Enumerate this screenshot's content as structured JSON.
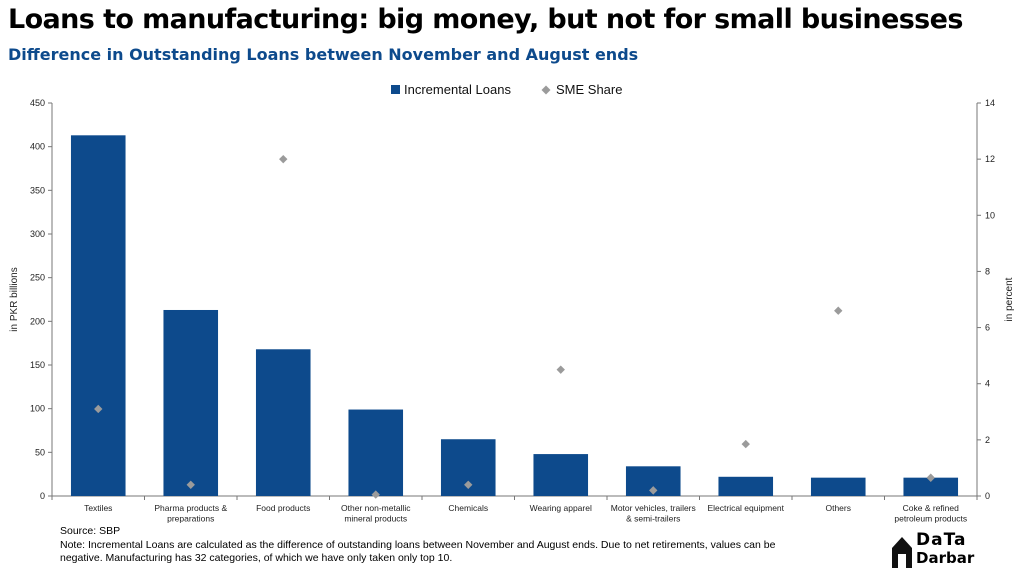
{
  "title": "Loans to manufacturing: big money, but not for small businesses",
  "subtitle": "Difference in Outstanding Loans between November and August ends",
  "source": "Source: SBP",
  "note": "Note: Incremental Loans are calculated as the difference of outstanding loans between November and August ends. Due to net retirements, values can be negative. Manufacturing has 32 categories, of which we have only taken only top 10.",
  "logo": {
    "top": "DaTa",
    "bottom": "Darbar"
  },
  "colors": {
    "bar": "#0d4a8c",
    "marker": "#9b9b9b",
    "title": "#000000",
    "subtitle": "#0d4a8c"
  },
  "chart_data": {
    "type": "bar",
    "categories": [
      [
        "Textiles"
      ],
      [
        "Pharma products &",
        "preparations"
      ],
      [
        "Food products"
      ],
      [
        "Other non-metallic",
        "mineral products"
      ],
      [
        "Chemicals"
      ],
      [
        "Wearing apparel"
      ],
      [
        "Motor vehicles, trailers",
        "& semi-trailers"
      ],
      [
        "Electrical equipment"
      ],
      [
        "Others"
      ],
      [
        "Coke & refined",
        "petroleum products"
      ]
    ],
    "series": [
      {
        "name": "Incremental Loans",
        "type": "bar",
        "axis": "left",
        "values": [
          413,
          213,
          168,
          99,
          65,
          48,
          34,
          22,
          21,
          21
        ]
      },
      {
        "name": "SME Share",
        "type": "scatter",
        "axis": "right",
        "values": [
          3.1,
          0.4,
          12.0,
          0.05,
          0.4,
          4.5,
          0.2,
          1.85,
          6.6,
          0.65
        ]
      }
    ],
    "ylabel": "in PKR billions",
    "y2label": "in percent",
    "ylim": [
      0,
      450
    ],
    "y2lim": [
      0,
      14
    ],
    "yticks": [
      0,
      50,
      100,
      150,
      200,
      250,
      300,
      350,
      400,
      450
    ],
    "y2ticks": [
      0,
      2,
      4,
      6,
      8,
      10,
      12,
      14
    ],
    "legend": "top-center",
    "grid": false
  }
}
